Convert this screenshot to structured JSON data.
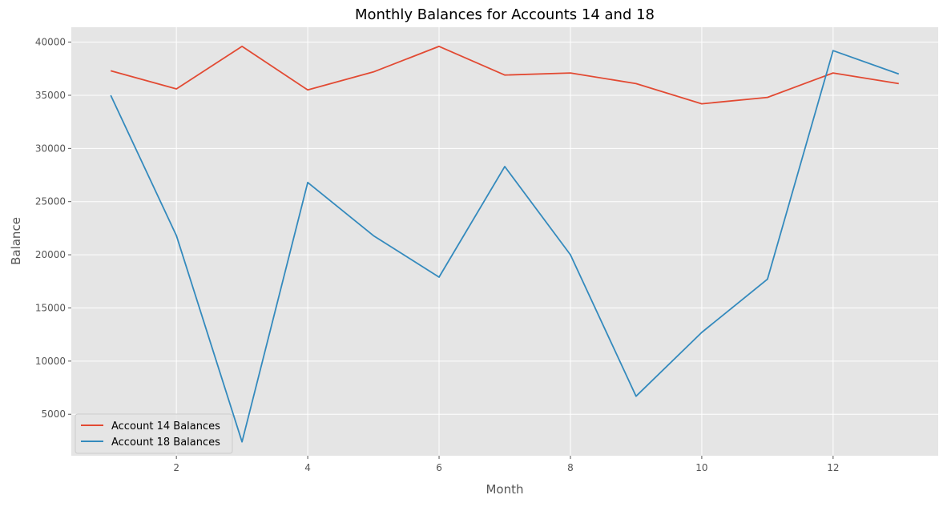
{
  "chart_data": {
    "type": "line",
    "title": "Monthly Balances for Accounts 14 and 18",
    "xlabel": "Month",
    "ylabel": "Balance",
    "x": [
      1,
      2,
      3,
      4,
      5,
      6,
      7,
      8,
      9,
      10,
      11,
      12,
      13
    ],
    "xlim": [
      0.4,
      13.6
    ],
    "ylim": [
      1100,
      41400
    ],
    "x_ticks": [
      2,
      4,
      6,
      8,
      10,
      12
    ],
    "y_ticks": [
      5000,
      10000,
      15000,
      20000,
      25000,
      30000,
      35000,
      40000
    ],
    "grid": true,
    "legend_position": "lower-left",
    "series": [
      {
        "name": "Account 14 Balances",
        "color": "#E24A33",
        "values": [
          37300,
          35600,
          39600,
          35500,
          37200,
          39600,
          36900,
          37100,
          36100,
          34200,
          34800,
          37100,
          36100
        ]
      },
      {
        "name": "Account 18 Balances",
        "color": "#348ABD",
        "values": [
          35000,
          21800,
          2400,
          26800,
          21800,
          17900,
          28300,
          20000,
          6700,
          12700,
          17700,
          39200,
          37000
        ]
      }
    ],
    "plot_background": "#E5E5E5",
    "grid_color": "#FFFFFF"
  }
}
